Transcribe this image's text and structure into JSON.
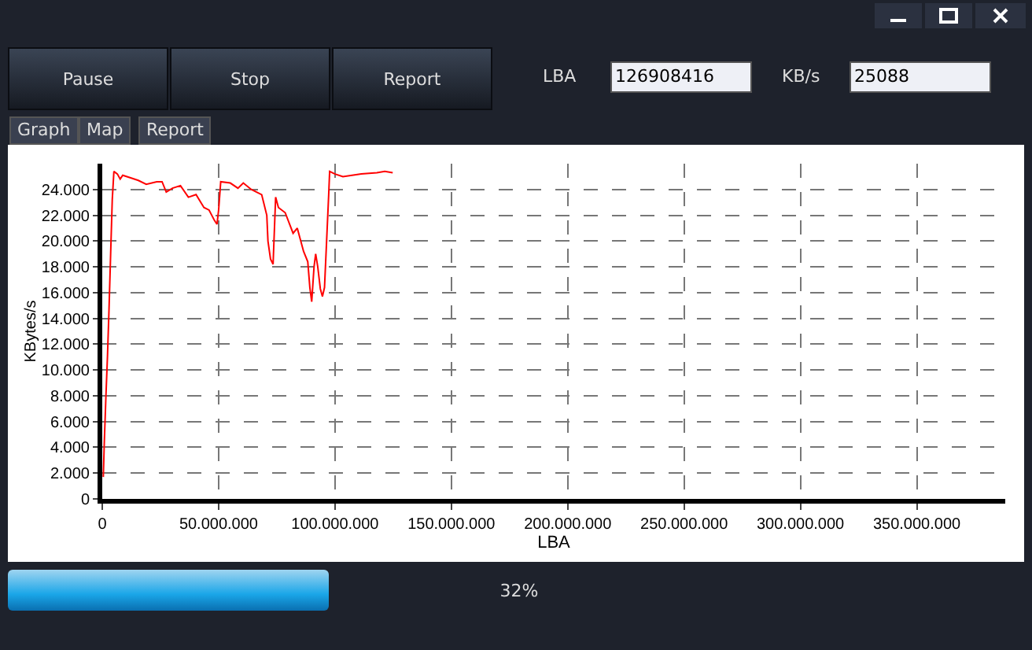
{
  "chart_data": {
    "type": "line",
    "xlabel": "LBA",
    "ylabel": "KBytes/s",
    "annotations": [
      "Pause",
      "Stop",
      "Report",
      "LBA",
      "126908416",
      "KB/s",
      "25088",
      "Graph",
      "Map",
      "Report",
      "32%"
    ],
    "series": [
      {
        "color": "#ff0000",
        "x": [
          450000,
          900000,
          1600000,
          2250000,
          2900000,
          3600000,
          4300000,
          5000000,
          6500000,
          7700000,
          8800000,
          12200000,
          15500000,
          18900000,
          23400000,
          25700000,
          27500000,
          30200000,
          33600000,
          37000000,
          40300000,
          43700000,
          45900000,
          48200000,
          49300000,
          50000000,
          50900000,
          55000000,
          58300000,
          60600000,
          64000000,
          68500000,
          70700000,
          71200000,
          72300000,
          73400000,
          74500000,
          75700000,
          78600000,
          82000000,
          83800000,
          86500000,
          88300000,
          89200000,
          90000000,
          91000000,
          91700000,
          92600000,
          93700000,
          94600000,
          95500000,
          96400000,
          97300000,
          97700000,
          100000000,
          103400000,
          111300000,
          118000000,
          121400000,
          124800000
        ],
        "values": [
          1700,
          4500,
          8100,
          11100,
          14700,
          19000,
          23200,
          25400,
          25200,
          24800,
          25100,
          24900,
          24700,
          24400,
          24600,
          24600,
          23800,
          24100,
          24300,
          23400,
          23600,
          22600,
          22400,
          21600,
          21300,
          22400,
          24600,
          24500,
          24100,
          24500,
          24000,
          23600,
          22000,
          20000,
          18600,
          18200,
          23400,
          22600,
          22200,
          20600,
          21000,
          19200,
          18400,
          16400,
          15300,
          18000,
          19000,
          18000,
          16300,
          15700,
          16400,
          20000,
          23600,
          25400,
          25200,
          25000,
          25200,
          25300,
          25400,
          25300
        ]
      }
    ],
    "xlim": [
      0,
      388000000
    ],
    "xticks": [
      0,
      {
        "value": 50000000,
        "label": "50.000.000"
      },
      {
        "value": 100000000,
        "label": "100.000.000"
      },
      {
        "value": 150000000,
        "label": "150.000.000"
      },
      {
        "value": 200000000,
        "label": "200.000.000"
      },
      {
        "value": 250000000,
        "label": "250.000.000"
      },
      {
        "value": 300000000,
        "label": "300.000.000"
      },
      {
        "value": 350000000,
        "label": "350.000.000"
      }
    ],
    "ylim": [
      0,
      26000
    ],
    "yticks": [
      0,
      {
        "value": 2000,
        "label": "2.000"
      },
      {
        "value": 4000,
        "label": "4.000"
      },
      {
        "value": 6000,
        "label": "6.000"
      },
      {
        "value": 8000,
        "label": "8.000"
      },
      {
        "value": 10000,
        "label": "10.000"
      },
      {
        "value": 12000,
        "label": "12.000"
      },
      {
        "value": 14000,
        "label": "14.000"
      },
      {
        "value": 16000,
        "label": "16.000"
      },
      {
        "value": 18000,
        "label": "18.000"
      },
      {
        "value": 20000,
        "label": "20.000"
      },
      {
        "value": 22000,
        "label": "22.000"
      },
      {
        "value": 24000,
        "label": "24.000"
      }
    ],
    "grid": true,
    "marker": "none",
    "line_style": "solid"
  }
}
